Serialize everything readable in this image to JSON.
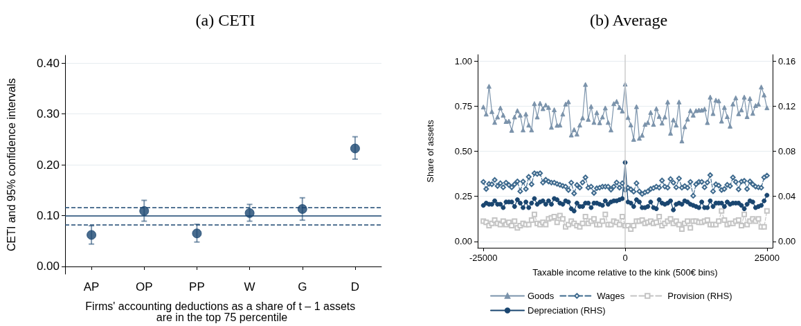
{
  "chart_data": [
    {
      "type": "scatter",
      "title": "(a) CETI",
      "xlabel": "Firms' accounting deductions as a share of t – 1 assets are in the top 75 percentile",
      "ylabel": "CETI and 95% confidence intervals",
      "categories": [
        "AP",
        "OP",
        "PP",
        "W",
        "G",
        "D"
      ],
      "series": [
        {
          "color": "#1a4670",
          "values": [
            0.062,
            0.109,
            0.065,
            0.105,
            0.113,
            0.232
          ],
          "errors": [
            [
              0.044,
              0.08
            ],
            [
              0.089,
              0.13
            ],
            [
              0.048,
              0.083
            ],
            [
              0.089,
              0.122
            ],
            [
              0.091,
              0.135
            ],
            [
              0.211,
              0.255
            ]
          ]
        }
      ],
      "ylim": [
        -0.015,
        0.415
      ],
      "yticks": [
        {
          "value": 0,
          "label": "0.00"
        },
        {
          "value": 0.1,
          "label": "0.10"
        },
        {
          "value": 0.2,
          "label": "0.20"
        },
        {
          "value": 0.3,
          "label": "0.30"
        },
        {
          "value": 0.4,
          "label": "0.40"
        }
      ],
      "ref_lines": [
        {
          "axis": "y",
          "value": 0.1,
          "color": "#1a4670",
          "line_style": "solid"
        },
        {
          "axis": "y",
          "value": 0.116,
          "color": "#1a4670",
          "line_style": "dashed"
        },
        {
          "axis": "y",
          "value": 0.082,
          "color": "#1a4670",
          "line_style": "dashed"
        }
      ],
      "marker": "circle",
      "grid": "y",
      "legend": false
    },
    {
      "type": "line",
      "title": "(b) Average",
      "xlabel": "Taxable income relative to the kink (500€ bins)",
      "ylabel": "Share of assets",
      "x": [
        -25000,
        -24500,
        -24000,
        -23500,
        -23000,
        -22500,
        -22000,
        -21500,
        -21000,
        -20500,
        -20000,
        -19500,
        -19000,
        -18500,
        -18000,
        -17500,
        -17000,
        -16500,
        -16000,
        -15500,
        -15000,
        -14500,
        -14000,
        -13500,
        -13000,
        -12500,
        -12000,
        -11500,
        -11000,
        -10500,
        -10000,
        -9500,
        -9000,
        -8500,
        -8000,
        -7500,
        -7000,
        -6500,
        -6000,
        -5500,
        -5000,
        -4500,
        -4000,
        -3500,
        -3000,
        -2500,
        -2000,
        -1500,
        -1000,
        -500,
        0,
        500,
        1000,
        1500,
        2000,
        2500,
        3000,
        3500,
        4000,
        4500,
        5000,
        5500,
        6000,
        6500,
        7000,
        7500,
        8000,
        8500,
        9000,
        9500,
        10000,
        10500,
        11000,
        11500,
        12000,
        12500,
        13000,
        13500,
        14000,
        14500,
        15000,
        15500,
        16000,
        16500,
        17000,
        17500,
        18000,
        18500,
        19000,
        19500,
        20000,
        20500,
        21000,
        21500,
        22000,
        22500,
        23000,
        23500,
        24000,
        24500,
        25000
      ],
      "series": [
        {
          "name": "Goods",
          "color": "#7b93ab",
          "marker": "triangle",
          "line_style": "solid",
          "values": [
            0.745,
            0.706,
            0.86,
            0.72,
            0.66,
            0.69,
            0.74,
            0.7,
            0.665,
            0.667,
            0.616,
            0.69,
            0.725,
            0.7,
            0.618,
            0.706,
            0.645,
            0.618,
            0.764,
            0.69,
            0.766,
            0.736,
            0.756,
            0.743,
            0.633,
            0.73,
            0.644,
            0.645,
            0.706,
            0.761,
            0.774,
            0.59,
            0.62,
            0.595,
            0.645,
            0.685,
            0.87,
            0.677,
            0.748,
            0.66,
            0.714,
            0.658,
            0.69,
            0.74,
            0.66,
            0.618,
            0.764,
            0.776,
            0.743,
            0.723,
            0.872,
            0.687,
            0.646,
            0.566,
            0.747,
            0.572,
            0.589,
            0.649,
            0.659,
            0.715,
            0.649,
            0.736,
            0.693,
            0.656,
            0.69,
            0.773,
            0.6,
            0.674,
            0.645,
            0.773,
            0.557,
            0.636,
            0.678,
            0.725,
            0.7,
            0.725,
            0.728,
            0.728,
            0.734,
            0.659,
            0.8,
            0.709,
            0.783,
            0.779,
            0.667,
            0.743,
            0.692,
            0.639,
            0.762,
            0.796,
            0.708,
            0.729,
            0.8,
            0.692,
            0.792,
            0.71,
            0.753,
            0.761,
            0.856,
            0.812,
            0.741
          ]
        },
        {
          "name": "Wages",
          "color": "#3e6a8e",
          "marker": "diamond",
          "line_style": "dashed",
          "values": [
            0.33,
            0.291,
            0.319,
            0.317,
            0.341,
            0.307,
            0.323,
            0.3,
            0.326,
            0.313,
            0.3,
            0.317,
            0.333,
            0.278,
            0.332,
            0.291,
            0.358,
            0.317,
            0.378,
            0.374,
            0.378,
            0.326,
            0.342,
            0.332,
            0.326,
            0.326,
            0.319,
            0.314,
            0.308,
            0.304,
            0.285,
            0.326,
            0.266,
            0.313,
            0.298,
            0.327,
            0.355,
            0.298,
            0.304,
            0.269,
            0.295,
            0.298,
            0.304,
            0.304,
            0.304,
            0.287,
            0.304,
            0.327,
            0.298,
            0.323,
            0.285,
            0.298,
            0.289,
            0.276,
            0.323,
            0.278,
            0.263,
            0.272,
            0.278,
            0.291,
            0.296,
            0.304,
            0.298,
            0.338,
            0.304,
            0.298,
            0.346,
            0.326,
            0.3,
            0.349,
            0.298,
            0.307,
            0.298,
            0.33,
            0.253,
            0.317,
            0.33,
            0.33,
            0.3,
            0.327,
            0.368,
            0.278,
            0.317,
            0.31,
            0.285,
            0.291,
            0.314,
            0.307,
            0.355,
            0.33,
            0.289,
            0.332,
            0.336,
            0.291,
            0.333,
            0.317,
            0.304,
            0.3,
            0.298,
            0.355,
            0.365
          ]
        },
        {
          "name": "Provision (RHS)",
          "color": "#c4c4c4",
          "marker": "square",
          "line_style": "dashed",
          "axis": "y2",
          "values": [
            0.018,
            0.017,
            0.014,
            0.016,
            0.019,
            0.016,
            0.015,
            0.018,
            0.015,
            0.017,
            0.014,
            0.018,
            0.012,
            0.014,
            0.016,
            0.015,
            0.015,
            0.019,
            0.024,
            0.016,
            0.015,
            0.017,
            0.015,
            0.02,
            0.021,
            0.022,
            0.017,
            0.023,
            0.02,
            0.013,
            0.015,
            0.018,
            0.016,
            0.014,
            0.013,
            0.016,
            0.022,
            0.016,
            0.018,
            0.02,
            0.015,
            0.015,
            0.018,
            0.024,
            0.015,
            0.015,
            0.018,
            0.017,
            0.015,
            0.022,
            0.014,
            0.014,
            0.011,
            0.014,
            0.018,
            0.018,
            0.019,
            0.016,
            0.017,
            0.018,
            0.016,
            0.017,
            0.022,
            0.014,
            0.016,
            0.018,
            0.02,
            0.016,
            0.018,
            0.015,
            0.011,
            0.016,
            0.018,
            0.012,
            0.018,
            0.018,
            0.017,
            0.017,
            0.018,
            0.019,
            0.015,
            0.015,
            0.015,
            0.018,
            0.027,
            0.019,
            0.015,
            0.016,
            0.016,
            0.018,
            0.019,
            0.014,
            0.024,
            0.015,
            0.018,
            0.02,
            0.018,
            0.02,
            0.013,
            0.013,
            0.027
          ]
        },
        {
          "name": "Depreciation (RHS)",
          "color": "#1a4670",
          "marker": "circle",
          "line_style": "solid",
          "axis": "y2",
          "values": [
            0.032,
            0.034,
            0.033,
            0.033,
            0.036,
            0.033,
            0.033,
            0.03,
            0.035,
            0.035,
            0.035,
            0.031,
            0.037,
            0.034,
            0.03,
            0.035,
            0.03,
            0.034,
            0.038,
            0.033,
            0.035,
            0.036,
            0.033,
            0.036,
            0.033,
            0.038,
            0.037,
            0.034,
            0.033,
            0.036,
            0.035,
            0.029,
            0.027,
            0.034,
            0.031,
            0.031,
            0.034,
            0.034,
            0.03,
            0.034,
            0.034,
            0.033,
            0.032,
            0.036,
            0.033,
            0.035,
            0.036,
            0.036,
            0.037,
            0.038,
            0.07,
            0.035,
            0.034,
            0.031,
            0.037,
            0.035,
            0.03,
            0.03,
            0.031,
            0.035,
            0.03,
            0.029,
            0.037,
            0.034,
            0.033,
            0.034,
            0.036,
            0.028,
            0.033,
            0.034,
            0.033,
            0.036,
            0.035,
            0.033,
            0.032,
            0.031,
            0.03,
            0.035,
            0.03,
            0.03,
            0.036,
            0.031,
            0.034,
            0.034,
            0.034,
            0.031,
            0.035,
            0.033,
            0.034,
            0.034,
            0.034,
            0.032,
            0.029,
            0.033,
            0.036,
            0.035,
            0.03,
            0.031,
            0.032,
            0.036,
            0.041
          ]
        }
      ],
      "xlim": [
        -26000,
        26000
      ],
      "xticks": [
        -25000,
        0,
        25000
      ],
      "ylim": [
        -0.035,
        1.035
      ],
      "yticks": [
        {
          "value": 0,
          "label": "0.00"
        },
        {
          "value": 0.25,
          "label": "0.25"
        },
        {
          "value": 0.5,
          "label": "0.50"
        },
        {
          "value": 0.75,
          "label": "0.75"
        },
        {
          "value": 1,
          "label": "1.00"
        }
      ],
      "y2lim": [
        -0.0056,
        0.1656
      ],
      "y2ticks": [
        {
          "value": 0,
          "label": "0.00"
        },
        {
          "value": 0.04,
          "label": "0.04"
        },
        {
          "value": 0.08,
          "label": "0.08"
        },
        {
          "value": 0.12,
          "label": "0.12"
        },
        {
          "value": 0.16,
          "label": "0.16"
        }
      ],
      "ref_lines": [
        {
          "axis": "x",
          "value": 0,
          "color": "#cccccc",
          "line_style": "solid"
        }
      ],
      "grid": "y",
      "legend": "bottom"
    }
  ]
}
